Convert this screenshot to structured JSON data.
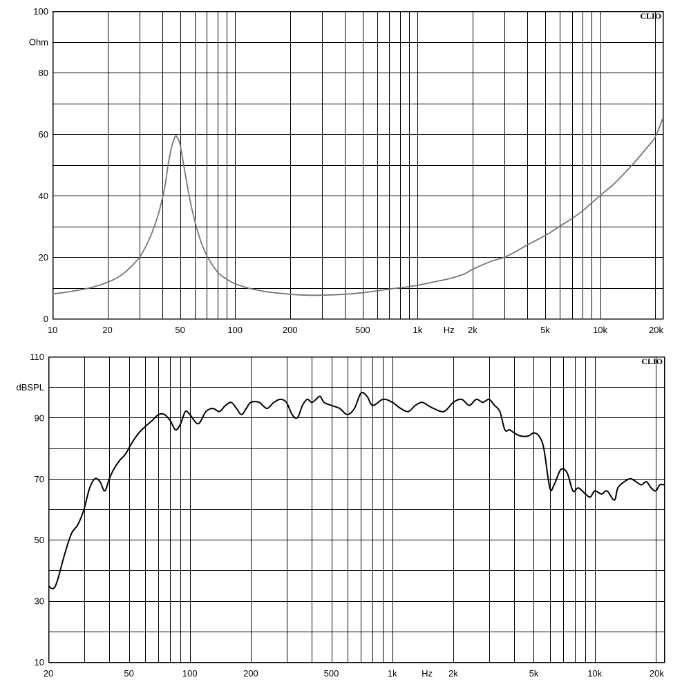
{
  "chart_data": [
    {
      "type": "line",
      "brand": "CLIO",
      "ylabel": "Ohm",
      "xlabel": "Hz",
      "x_scale": "log",
      "xlim": [
        10,
        22000
      ],
      "ylim": [
        0,
        100
      ],
      "grid": true,
      "line_color": "#777777",
      "y_ticks": [
        {
          "value": 0,
          "label": "0"
        },
        {
          "value": 20,
          "label": "20"
        },
        {
          "value": 40,
          "label": "40"
        },
        {
          "value": 60,
          "label": "60"
        },
        {
          "value": 80,
          "label": "80"
        },
        {
          "value": 100,
          "label": "100"
        }
      ],
      "y_grid": [
        10,
        20,
        30,
        40,
        50,
        60,
        70,
        80,
        90
      ],
      "x_ticks": [
        {
          "value": 10,
          "label": "10"
        },
        {
          "value": 20,
          "label": "20"
        },
        {
          "value": 50,
          "label": "50"
        },
        {
          "value": 100,
          "label": "100"
        },
        {
          "value": 200,
          "label": "200"
        },
        {
          "value": 500,
          "label": "500"
        },
        {
          "value": 1000,
          "label": "1k"
        },
        {
          "value": 2000,
          "label": "2k"
        },
        {
          "value": 5000,
          "label": "5k"
        },
        {
          "value": 10000,
          "label": "10k"
        },
        {
          "value": 20000,
          "label": "20k"
        }
      ],
      "x_grid": [
        20,
        30,
        40,
        50,
        60,
        70,
        80,
        90,
        100,
        200,
        300,
        400,
        500,
        600,
        700,
        800,
        900,
        1000,
        2000,
        3000,
        4000,
        5000,
        6000,
        7000,
        8000,
        9000,
        10000,
        20000
      ],
      "series": [
        {
          "points": [
            [
              10,
              8.0
            ],
            [
              12,
              8.6
            ],
            [
              15,
              9.6
            ],
            [
              18,
              10.8
            ],
            [
              20,
              11.8
            ],
            [
              23,
              13.5
            ],
            [
              26,
              16.0
            ],
            [
              30,
              20.0
            ],
            [
              34,
              26.0
            ],
            [
              38,
              34.0
            ],
            [
              41,
              42.0
            ],
            [
              43,
              50.0
            ],
            [
              45,
              56.0
            ],
            [
              47,
              59.2
            ],
            [
              48,
              59.0
            ],
            [
              50,
              56.5
            ],
            [
              53,
              48.0
            ],
            [
              56,
              40.0
            ],
            [
              60,
              32.0
            ],
            [
              65,
              25.0
            ],
            [
              70,
              20.5
            ],
            [
              80,
              15.2
            ],
            [
              90,
              12.8
            ],
            [
              100,
              11.3
            ],
            [
              120,
              9.8
            ],
            [
              150,
              8.7
            ],
            [
              200,
              7.9
            ],
            [
              250,
              7.6
            ],
            [
              300,
              7.6
            ],
            [
              400,
              7.9
            ],
            [
              500,
              8.4
            ],
            [
              600,
              9.0
            ],
            [
              700,
              9.6
            ],
            [
              800,
              10.0
            ],
            [
              1000,
              10.8
            ],
            [
              1200,
              11.8
            ],
            [
              1500,
              13.0
            ],
            [
              1800,
              14.5
            ],
            [
              2000,
              16.0
            ],
            [
              2500,
              18.5
            ],
            [
              3000,
              20.0
            ],
            [
              3500,
              22.0
            ],
            [
              4000,
              24.0
            ],
            [
              5000,
              27.0
            ],
            [
              6000,
              30.0
            ],
            [
              7000,
              32.5
            ],
            [
              8000,
              35.0
            ],
            [
              10000,
              40.0
            ],
            [
              12000,
              44.0
            ],
            [
              15000,
              50.0
            ],
            [
              18000,
              55.5
            ],
            [
              20000,
              59.0
            ],
            [
              22000,
              65.0
            ]
          ]
        }
      ]
    },
    {
      "type": "line",
      "brand": "CLIO",
      "ylabel": "dBSPL",
      "xlabel": "Hz",
      "x_scale": "log",
      "xlim": [
        20,
        22000
      ],
      "ylim": [
        10,
        110
      ],
      "grid": true,
      "line_color": "#000000",
      "y_ticks": [
        {
          "value": 10,
          "label": "10"
        },
        {
          "value": 30,
          "label": "30"
        },
        {
          "value": 50,
          "label": "50"
        },
        {
          "value": 70,
          "label": "70"
        },
        {
          "value": 90,
          "label": "90"
        },
        {
          "value": 110,
          "label": "110"
        }
      ],
      "y_grid": [
        20,
        30,
        40,
        50,
        60,
        70,
        80,
        90,
        100
      ],
      "x_ticks": [
        {
          "value": 20,
          "label": "20"
        },
        {
          "value": 50,
          "label": "50"
        },
        {
          "value": 100,
          "label": "100"
        },
        {
          "value": 200,
          "label": "200"
        },
        {
          "value": 500,
          "label": "500"
        },
        {
          "value": 1000,
          "label": "1k"
        },
        {
          "value": 2000,
          "label": "2k"
        },
        {
          "value": 5000,
          "label": "5k"
        },
        {
          "value": 10000,
          "label": "10k"
        },
        {
          "value": 20000,
          "label": "20k"
        }
      ],
      "x_grid": [
        30,
        40,
        50,
        60,
        70,
        80,
        90,
        100,
        200,
        300,
        400,
        500,
        600,
        700,
        800,
        900,
        1000,
        2000,
        3000,
        4000,
        5000,
        6000,
        7000,
        8000,
        9000,
        10000,
        20000
      ],
      "series": [
        {
          "points": [
            [
              20,
              35
            ],
            [
              21,
              34
            ],
            [
              22,
              36
            ],
            [
              24,
              45
            ],
            [
              26,
              52
            ],
            [
              28,
              55
            ],
            [
              30,
              60
            ],
            [
              32,
              67
            ],
            [
              34,
              70
            ],
            [
              36,
              69
            ],
            [
              38,
              66
            ],
            [
              40,
              70
            ],
            [
              42,
              73
            ],
            [
              45,
              76
            ],
            [
              48,
              78
            ],
            [
              52,
              82
            ],
            [
              56,
              85
            ],
            [
              60,
              87
            ],
            [
              65,
              89
            ],
            [
              70,
              91
            ],
            [
              75,
              91
            ],
            [
              80,
              89
            ],
            [
              85,
              86
            ],
            [
              90,
              88
            ],
            [
              95,
              92
            ],
            [
              100,
              91
            ],
            [
              110,
              88
            ],
            [
              120,
              92
            ],
            [
              130,
              93
            ],
            [
              140,
              92
            ],
            [
              150,
              94
            ],
            [
              160,
              95
            ],
            [
              170,
              93
            ],
            [
              180,
              91
            ],
            [
              190,
              93
            ],
            [
              200,
              95
            ],
            [
              220,
              95
            ],
            [
              240,
              93
            ],
            [
              260,
              95
            ],
            [
              280,
              96
            ],
            [
              300,
              95
            ],
            [
              320,
              91
            ],
            [
              340,
              90
            ],
            [
              360,
              94
            ],
            [
              380,
              96
            ],
            [
              400,
              95
            ],
            [
              420,
              96
            ],
            [
              440,
              97
            ],
            [
              460,
              95
            ],
            [
              500,
              94
            ],
            [
              550,
              93
            ],
            [
              600,
              91
            ],
            [
              650,
              93
            ],
            [
              700,
              98
            ],
            [
              750,
              97
            ],
            [
              800,
              94
            ],
            [
              900,
              96
            ],
            [
              1000,
              95
            ],
            [
              1100,
              93
            ],
            [
              1200,
              92
            ],
            [
              1300,
              94
            ],
            [
              1400,
              95
            ],
            [
              1500,
              94
            ],
            [
              1600,
              93
            ],
            [
              1800,
              92
            ],
            [
              2000,
              95
            ],
            [
              2200,
              96
            ],
            [
              2400,
              94
            ],
            [
              2600,
              96
            ],
            [
              2800,
              95
            ],
            [
              3000,
              96
            ],
            [
              3200,
              94
            ],
            [
              3400,
              92
            ],
            [
              3600,
              86
            ],
            [
              3800,
              86
            ],
            [
              4000,
              85
            ],
            [
              4300,
              84
            ],
            [
              4700,
              84
            ],
            [
              5000,
              85
            ],
            [
              5300,
              84
            ],
            [
              5600,
              80
            ],
            [
              6000,
              67
            ],
            [
              6300,
              68
            ],
            [
              6800,
              73
            ],
            [
              7300,
              72
            ],
            [
              7800,
              66
            ],
            [
              8300,
              67
            ],
            [
              9000,
              65
            ],
            [
              9500,
              64
            ],
            [
              10000,
              66
            ],
            [
              10800,
              65
            ],
            [
              11500,
              66
            ],
            [
              12500,
              63
            ],
            [
              13000,
              67
            ],
            [
              14000,
              69
            ],
            [
              15000,
              70
            ],
            [
              16000,
              69
            ],
            [
              17000,
              68
            ],
            [
              18000,
              69
            ],
            [
              19000,
              67
            ],
            [
              20000,
              66
            ],
            [
              21000,
              68
            ],
            [
              22000,
              68
            ]
          ]
        }
      ]
    }
  ]
}
